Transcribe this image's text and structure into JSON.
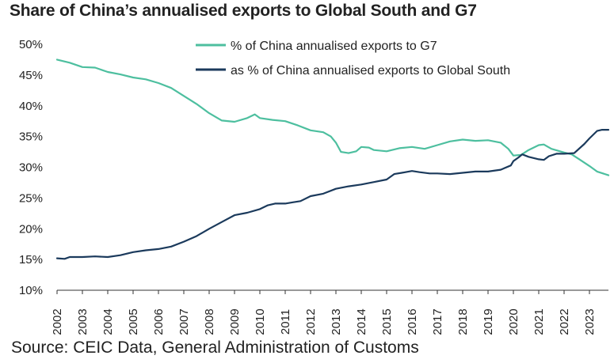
{
  "title": "Share of China’s annualised exports to Global South and G7",
  "source": "Source: CEIC Data, General Administration of Customs",
  "chart_data": {
    "type": "line",
    "title": "Share of China’s annualised exports to Global South and G7",
    "ylim": [
      10,
      50
    ],
    "y_ticks": [
      "10%",
      "15%",
      "20%",
      "25%",
      "30%",
      "35%",
      "40%",
      "45%",
      "50%"
    ],
    "xlim": [
      2002,
      2023.75
    ],
    "x_ticks": [
      "2002",
      "2003",
      "2004",
      "2005",
      "2006",
      "2007",
      "2008",
      "2009",
      "2010",
      "2011",
      "2012",
      "2013",
      "2014",
      "2015",
      "2016",
      "2017",
      "2018",
      "2019",
      "2020",
      "2021",
      "2022",
      "2023"
    ],
    "grid": false,
    "legend_position": "top-center",
    "series": [
      {
        "name": "% of China annualised exports to G7",
        "color": "#4dbf9f",
        "points": [
          [
            2002.0,
            47.5
          ],
          [
            2002.5,
            47.0
          ],
          [
            2003.0,
            46.3
          ],
          [
            2003.5,
            46.2
          ],
          [
            2004.0,
            45.5
          ],
          [
            2004.5,
            45.1
          ],
          [
            2005.0,
            44.6
          ],
          [
            2005.5,
            44.3
          ],
          [
            2006.0,
            43.7
          ],
          [
            2006.5,
            42.9
          ],
          [
            2007.0,
            41.6
          ],
          [
            2007.5,
            40.3
          ],
          [
            2008.0,
            38.8
          ],
          [
            2008.5,
            37.6
          ],
          [
            2009.0,
            37.4
          ],
          [
            2009.5,
            38.0
          ],
          [
            2009.8,
            38.6
          ],
          [
            2010.0,
            38.0
          ],
          [
            2010.5,
            37.7
          ],
          [
            2011.0,
            37.5
          ],
          [
            2011.5,
            36.8
          ],
          [
            2012.0,
            36.0
          ],
          [
            2012.5,
            35.7
          ],
          [
            2012.8,
            35.0
          ],
          [
            2013.0,
            34.0
          ],
          [
            2013.2,
            32.5
          ],
          [
            2013.5,
            32.3
          ],
          [
            2013.8,
            32.6
          ],
          [
            2014.0,
            33.3
          ],
          [
            2014.3,
            33.2
          ],
          [
            2014.5,
            32.8
          ],
          [
            2015.0,
            32.6
          ],
          [
            2015.5,
            33.1
          ],
          [
            2016.0,
            33.3
          ],
          [
            2016.5,
            33.0
          ],
          [
            2017.0,
            33.6
          ],
          [
            2017.5,
            34.2
          ],
          [
            2018.0,
            34.5
          ],
          [
            2018.5,
            34.3
          ],
          [
            2019.0,
            34.4
          ],
          [
            2019.5,
            34.0
          ],
          [
            2019.8,
            33.0
          ],
          [
            2020.0,
            31.9
          ],
          [
            2020.3,
            32.0
          ],
          [
            2020.6,
            32.8
          ],
          [
            2021.0,
            33.6
          ],
          [
            2021.2,
            33.7
          ],
          [
            2021.5,
            33.0
          ],
          [
            2022.0,
            32.4
          ],
          [
            2022.3,
            32.1
          ],
          [
            2022.6,
            31.3
          ],
          [
            2023.0,
            30.2
          ],
          [
            2023.3,
            29.3
          ],
          [
            2023.75,
            28.7
          ]
        ]
      },
      {
        "name": "as % of China annualised exports to Global South",
        "color": "#1b3a5c",
        "points": [
          [
            2002.0,
            15.2
          ],
          [
            2002.3,
            15.1
          ],
          [
            2002.5,
            15.4
          ],
          [
            2003.0,
            15.4
          ],
          [
            2003.5,
            15.5
          ],
          [
            2004.0,
            15.4
          ],
          [
            2004.5,
            15.7
          ],
          [
            2005.0,
            16.2
          ],
          [
            2005.5,
            16.5
          ],
          [
            2006.0,
            16.7
          ],
          [
            2006.5,
            17.1
          ],
          [
            2007.0,
            17.9
          ],
          [
            2007.5,
            18.8
          ],
          [
            2008.0,
            20.0
          ],
          [
            2008.5,
            21.1
          ],
          [
            2009.0,
            22.2
          ],
          [
            2009.5,
            22.6
          ],
          [
            2010.0,
            23.2
          ],
          [
            2010.3,
            23.8
          ],
          [
            2010.6,
            24.1
          ],
          [
            2011.0,
            24.1
          ],
          [
            2011.3,
            24.3
          ],
          [
            2011.6,
            24.5
          ],
          [
            2012.0,
            25.3
          ],
          [
            2012.5,
            25.7
          ],
          [
            2013.0,
            26.5
          ],
          [
            2013.5,
            26.9
          ],
          [
            2014.0,
            27.2
          ],
          [
            2014.5,
            27.6
          ],
          [
            2015.0,
            28.0
          ],
          [
            2015.3,
            28.9
          ],
          [
            2015.6,
            29.1
          ],
          [
            2016.0,
            29.4
          ],
          [
            2016.3,
            29.2
          ],
          [
            2016.7,
            29.0
          ],
          [
            2017.0,
            29.0
          ],
          [
            2017.5,
            28.9
          ],
          [
            2018.0,
            29.1
          ],
          [
            2018.5,
            29.3
          ],
          [
            2019.0,
            29.3
          ],
          [
            2019.5,
            29.6
          ],
          [
            2019.9,
            30.3
          ],
          [
            2020.0,
            31.0
          ],
          [
            2020.2,
            31.6
          ],
          [
            2020.35,
            32.1
          ],
          [
            2020.6,
            31.7
          ],
          [
            2021.0,
            31.3
          ],
          [
            2021.2,
            31.2
          ],
          [
            2021.4,
            31.8
          ],
          [
            2021.7,
            32.2
          ],
          [
            2022.0,
            32.2
          ],
          [
            2022.4,
            32.3
          ],
          [
            2022.8,
            33.8
          ],
          [
            2023.0,
            34.7
          ],
          [
            2023.3,
            35.9
          ],
          [
            2023.5,
            36.1
          ],
          [
            2023.75,
            36.1
          ]
        ]
      }
    ]
  }
}
